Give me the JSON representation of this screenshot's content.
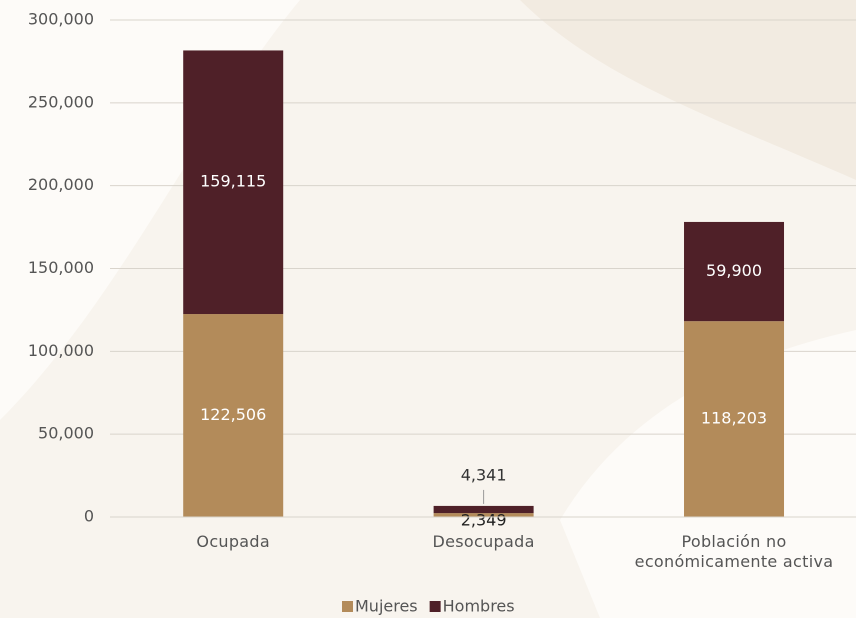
{
  "chart_data": {
    "type": "stacked_bar",
    "categories": [
      "Ocupada",
      "Desocupada",
      "Población no económicamente activa"
    ],
    "series": [
      {
        "name": "Mujeres",
        "color": "#b38b5a",
        "values": [
          122506,
          2349,
          118203
        ],
        "value_labels": [
          "122,506",
          "2,349",
          "118,203"
        ]
      },
      {
        "name": "Hombres",
        "color": "#4f2028",
        "values": [
          159115,
          4341,
          59900
        ],
        "value_labels": [
          "159,115",
          "4,341",
          "59,900"
        ]
      }
    ],
    "ylim": [
      0,
      300000
    ],
    "yticks": [
      0,
      {
        "value": 50000,
        "label": "50,000"
      },
      {
        "value": 100000,
        "label": "100,000"
      },
      {
        "value": 150000,
        "label": "150,000"
      },
      {
        "value": 200000,
        "label": "200,000"
      },
      {
        "value": 250000,
        "label": "250,000"
      },
      {
        "value": 300000,
        "label": "300,000"
      }
    ],
    "grid": true,
    "legend": "bottom"
  }
}
